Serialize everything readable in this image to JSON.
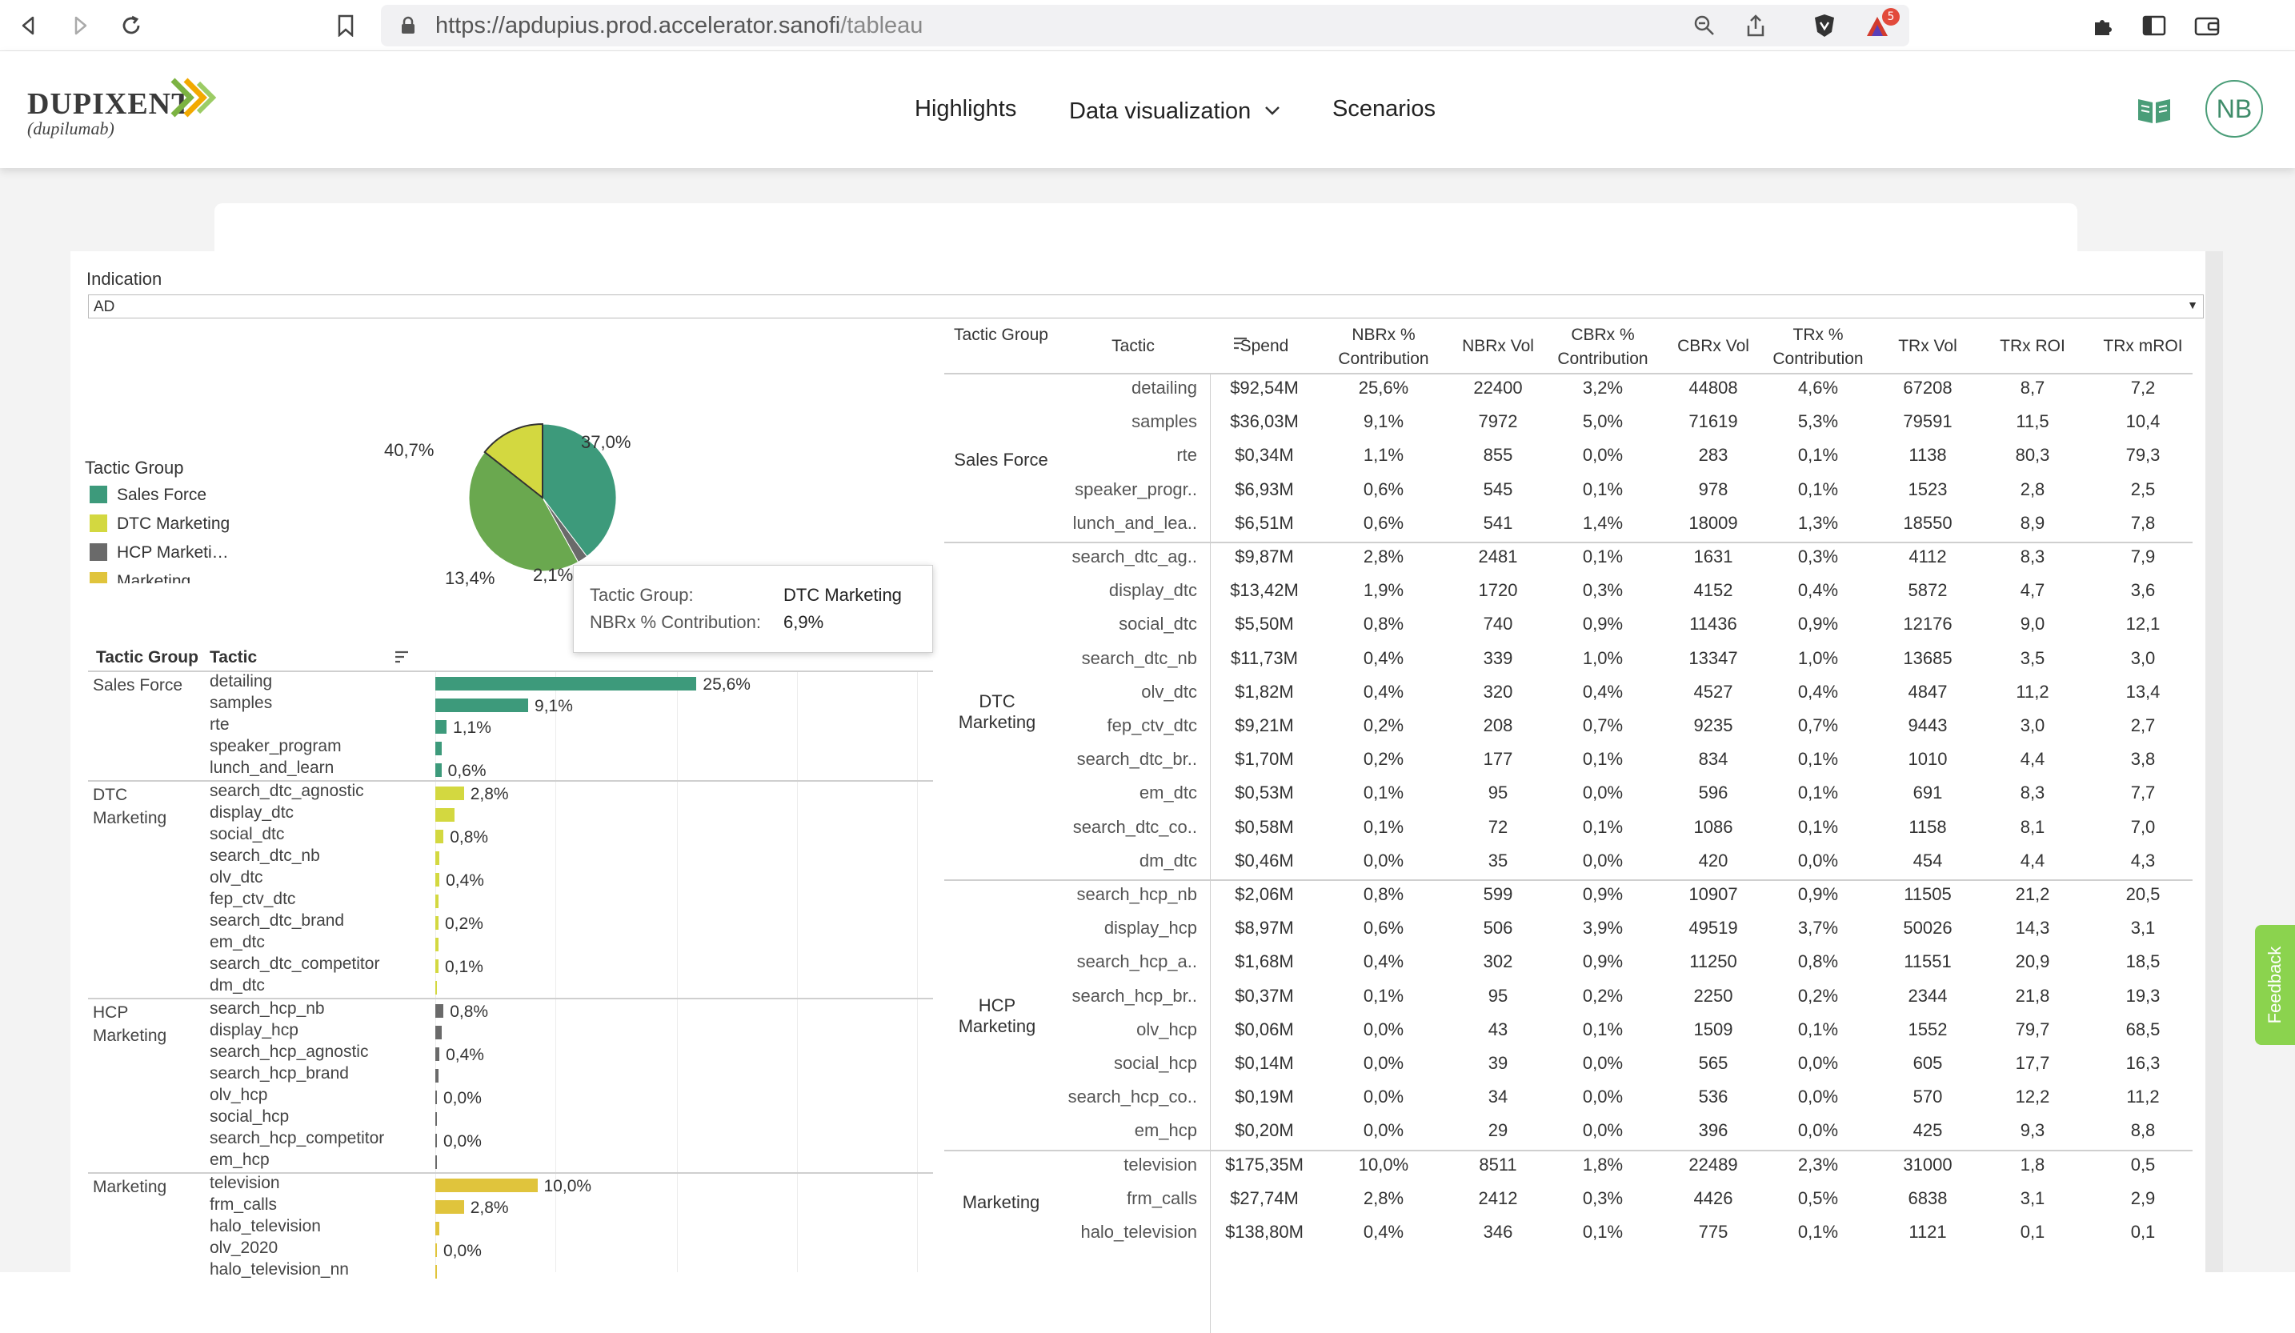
{
  "browser": {
    "url_host": "https://apdupius.prod.accelerator.sanofi",
    "url_path": "/tableau",
    "extension_badge": "5"
  },
  "header": {
    "logo_word": "DUPIXENT",
    "logo_sub": "(dupilumab)",
    "nav": [
      "Highlights",
      "Data visualization",
      "Scenarios"
    ],
    "avatar": "NB"
  },
  "filter": {
    "label": "Indication",
    "value": "AD"
  },
  "legend": {
    "title": "Tactic Group",
    "items": [
      {
        "label": "Sales Force",
        "color": "#3d9a7b"
      },
      {
        "label": "DTC Marketing",
        "color": "#d3d840"
      },
      {
        "label": "HCP Marketi…",
        "color": "#6a6a6a"
      },
      {
        "label": "Marketing",
        "color": "#e0c43c"
      }
    ]
  },
  "pie_labels": [
    "37,0%",
    "40,7%",
    "13,4%",
    "2,1%"
  ],
  "tooltip": {
    "k1": "Tactic Group:",
    "v1": "DTC Marketing",
    "k2": "NBRx % Contribution:",
    "v2": "6,9%"
  },
  "bar_table": {
    "headers": [
      "Tactic Group",
      "Tactic"
    ],
    "groups": [
      {
        "name": "Sales Force",
        "color": "#3d9a7b",
        "tactics": [
          "detailing",
          "samples",
          "rte",
          "speaker_program",
          "lunch_and_learn"
        ],
        "values": [
          25.6,
          9.1,
          1.1,
          0.6,
          0.6
        ],
        "labels": [
          "25,6%",
          "9,1%",
          "1,1%",
          "",
          "0,6%"
        ]
      },
      {
        "name": "DTC Marketing",
        "color": "#d3d840",
        "tactics": [
          "search_dtc_agnostic",
          "display_dtc",
          "social_dtc",
          "search_dtc_nb",
          "olv_dtc",
          "fep_ctv_dtc",
          "search_dtc_brand",
          "em_dtc",
          "search_dtc_competitor",
          "dm_dtc"
        ],
        "values": [
          2.8,
          1.9,
          0.8,
          0.4,
          0.4,
          0.2,
          0.2,
          0.1,
          0.1,
          0.0
        ],
        "labels": [
          "2,8%",
          "",
          "0,8%",
          "",
          "0,4%",
          "",
          "0,2%",
          "",
          "0,1%",
          ""
        ]
      },
      {
        "name": "HCP Marketing",
        "color": "#6a6a6a",
        "tactics": [
          "search_hcp_nb",
          "display_hcp",
          "search_hcp_agnostic",
          "search_hcp_brand",
          "olv_hcp",
          "social_hcp",
          "search_hcp_competitor",
          "em_hcp"
        ],
        "values": [
          0.8,
          0.6,
          0.4,
          0.1,
          0.0,
          0.0,
          0.0,
          0.0
        ],
        "labels": [
          "0,8%",
          "",
          "0,4%",
          "",
          "0,0%",
          "",
          "0,0%",
          ""
        ]
      },
      {
        "name": "Marketing",
        "color": "#e0c43c",
        "tactics": [
          "television",
          "frm_calls",
          "halo_television",
          "olv_2020",
          "halo_television_nn"
        ],
        "values": [
          10.0,
          2.8,
          0.4,
          0.0,
          0.0
        ],
        "labels": [
          "10,0%",
          "2,8%",
          "",
          "0,0%",
          ""
        ]
      }
    ]
  },
  "data_table": {
    "headers": [
      "Tactic Group",
      "Tactic",
      "Spend",
      "NBRx % Contribution",
      "NBRx Vol",
      "CBRx % Contribution",
      "CBRx Vol",
      "TRx % Contribution",
      "TRx Vol",
      "TRx ROI",
      "TRx mROI"
    ],
    "groups": [
      {
        "name": "Sales Force",
        "rows": [
          [
            "detailing",
            "$92,54M",
            "25,6%",
            "22400",
            "3,2%",
            "44808",
            "4,6%",
            "67208",
            "8,7",
            "7,2"
          ],
          [
            "samples",
            "$36,03M",
            "9,1%",
            "7972",
            "5,0%",
            "71619",
            "5,3%",
            "79591",
            "11,5",
            "10,4"
          ],
          [
            "rte",
            "$0,34M",
            "1,1%",
            "855",
            "0,0%",
            "283",
            "0,1%",
            "1138",
            "80,3",
            "79,3"
          ],
          [
            "speaker_progr..",
            "$6,93M",
            "0,6%",
            "545",
            "0,1%",
            "978",
            "0,1%",
            "1523",
            "2,8",
            "2,5"
          ],
          [
            "lunch_and_lea..",
            "$6,51M",
            "0,6%",
            "541",
            "1,4%",
            "18009",
            "1,3%",
            "18550",
            "8,9",
            "7,8"
          ]
        ]
      },
      {
        "name": "DTC Marketing",
        "rows": [
          [
            "search_dtc_ag..",
            "$9,87M",
            "2,8%",
            "2481",
            "0,1%",
            "1631",
            "0,3%",
            "4112",
            "8,3",
            "7,9"
          ],
          [
            "display_dtc",
            "$13,42M",
            "1,9%",
            "1720",
            "0,3%",
            "4152",
            "0,4%",
            "5872",
            "4,7",
            "3,6"
          ],
          [
            "social_dtc",
            "$5,50M",
            "0,8%",
            "740",
            "0,9%",
            "11436",
            "0,9%",
            "12176",
            "9,0",
            "12,1"
          ],
          [
            "search_dtc_nb",
            "$11,73M",
            "0,4%",
            "339",
            "1,0%",
            "13347",
            "1,0%",
            "13685",
            "3,5",
            "3,0"
          ],
          [
            "olv_dtc",
            "$1,82M",
            "0,4%",
            "320",
            "0,4%",
            "4527",
            "0,4%",
            "4847",
            "11,2",
            "13,4"
          ],
          [
            "fep_ctv_dtc",
            "$9,21M",
            "0,2%",
            "208",
            "0,7%",
            "9235",
            "0,7%",
            "9443",
            "3,0",
            "2,7"
          ],
          [
            "search_dtc_br..",
            "$1,70M",
            "0,2%",
            "177",
            "0,1%",
            "834",
            "0,1%",
            "1010",
            "4,4",
            "3,8"
          ],
          [
            "em_dtc",
            "$0,53M",
            "0,1%",
            "95",
            "0,0%",
            "596",
            "0,1%",
            "691",
            "8,3",
            "7,7"
          ],
          [
            "search_dtc_co..",
            "$0,58M",
            "0,1%",
            "72",
            "0,1%",
            "1086",
            "0,1%",
            "1158",
            "8,1",
            "7,0"
          ],
          [
            "dm_dtc",
            "$0,46M",
            "0,0%",
            "35",
            "0,0%",
            "420",
            "0,0%",
            "454",
            "4,4",
            "4,3"
          ]
        ]
      },
      {
        "name": "HCP Marketing",
        "rows": [
          [
            "search_hcp_nb",
            "$2,06M",
            "0,8%",
            "599",
            "0,9%",
            "10907",
            "0,9%",
            "11505",
            "21,2",
            "20,5"
          ],
          [
            "display_hcp",
            "$8,97M",
            "0,6%",
            "506",
            "3,9%",
            "49519",
            "3,7%",
            "50026",
            "14,3",
            "3,1"
          ],
          [
            "search_hcp_a..",
            "$1,68M",
            "0,4%",
            "302",
            "0,9%",
            "11250",
            "0,8%",
            "11551",
            "20,9",
            "18,5"
          ],
          [
            "search_hcp_br..",
            "$0,37M",
            "0,1%",
            "95",
            "0,2%",
            "2250",
            "0,2%",
            "2344",
            "21,8",
            "19,3"
          ],
          [
            "olv_hcp",
            "$0,06M",
            "0,0%",
            "43",
            "0,1%",
            "1509",
            "0,1%",
            "1552",
            "79,7",
            "68,5"
          ],
          [
            "social_hcp",
            "$0,14M",
            "0,0%",
            "39",
            "0,0%",
            "565",
            "0,0%",
            "605",
            "17,7",
            "16,3"
          ],
          [
            "search_hcp_co..",
            "$0,19M",
            "0,0%",
            "34",
            "0,0%",
            "536",
            "0,0%",
            "570",
            "12,2",
            "11,2"
          ],
          [
            "em_hcp",
            "$0,20M",
            "0,0%",
            "29",
            "0,0%",
            "396",
            "0,0%",
            "425",
            "9,3",
            "8,8"
          ]
        ]
      },
      {
        "name": "Marketing",
        "rows": [
          [
            "television",
            "$175,35M",
            "10,0%",
            "8511",
            "1,8%",
            "22489",
            "2,3%",
            "31000",
            "1,8",
            "0,5"
          ],
          [
            "frm_calls",
            "$27,74M",
            "2,8%",
            "2412",
            "0,3%",
            "4426",
            "0,5%",
            "6838",
            "3,1",
            "2,9"
          ],
          [
            "halo_television",
            "$138,80M",
            "0,4%",
            "346",
            "0,1%",
            "775",
            "0,1%",
            "1121",
            "0,1",
            "0,1"
          ]
        ]
      }
    ]
  },
  "feedback_label": "Feedback"
}
